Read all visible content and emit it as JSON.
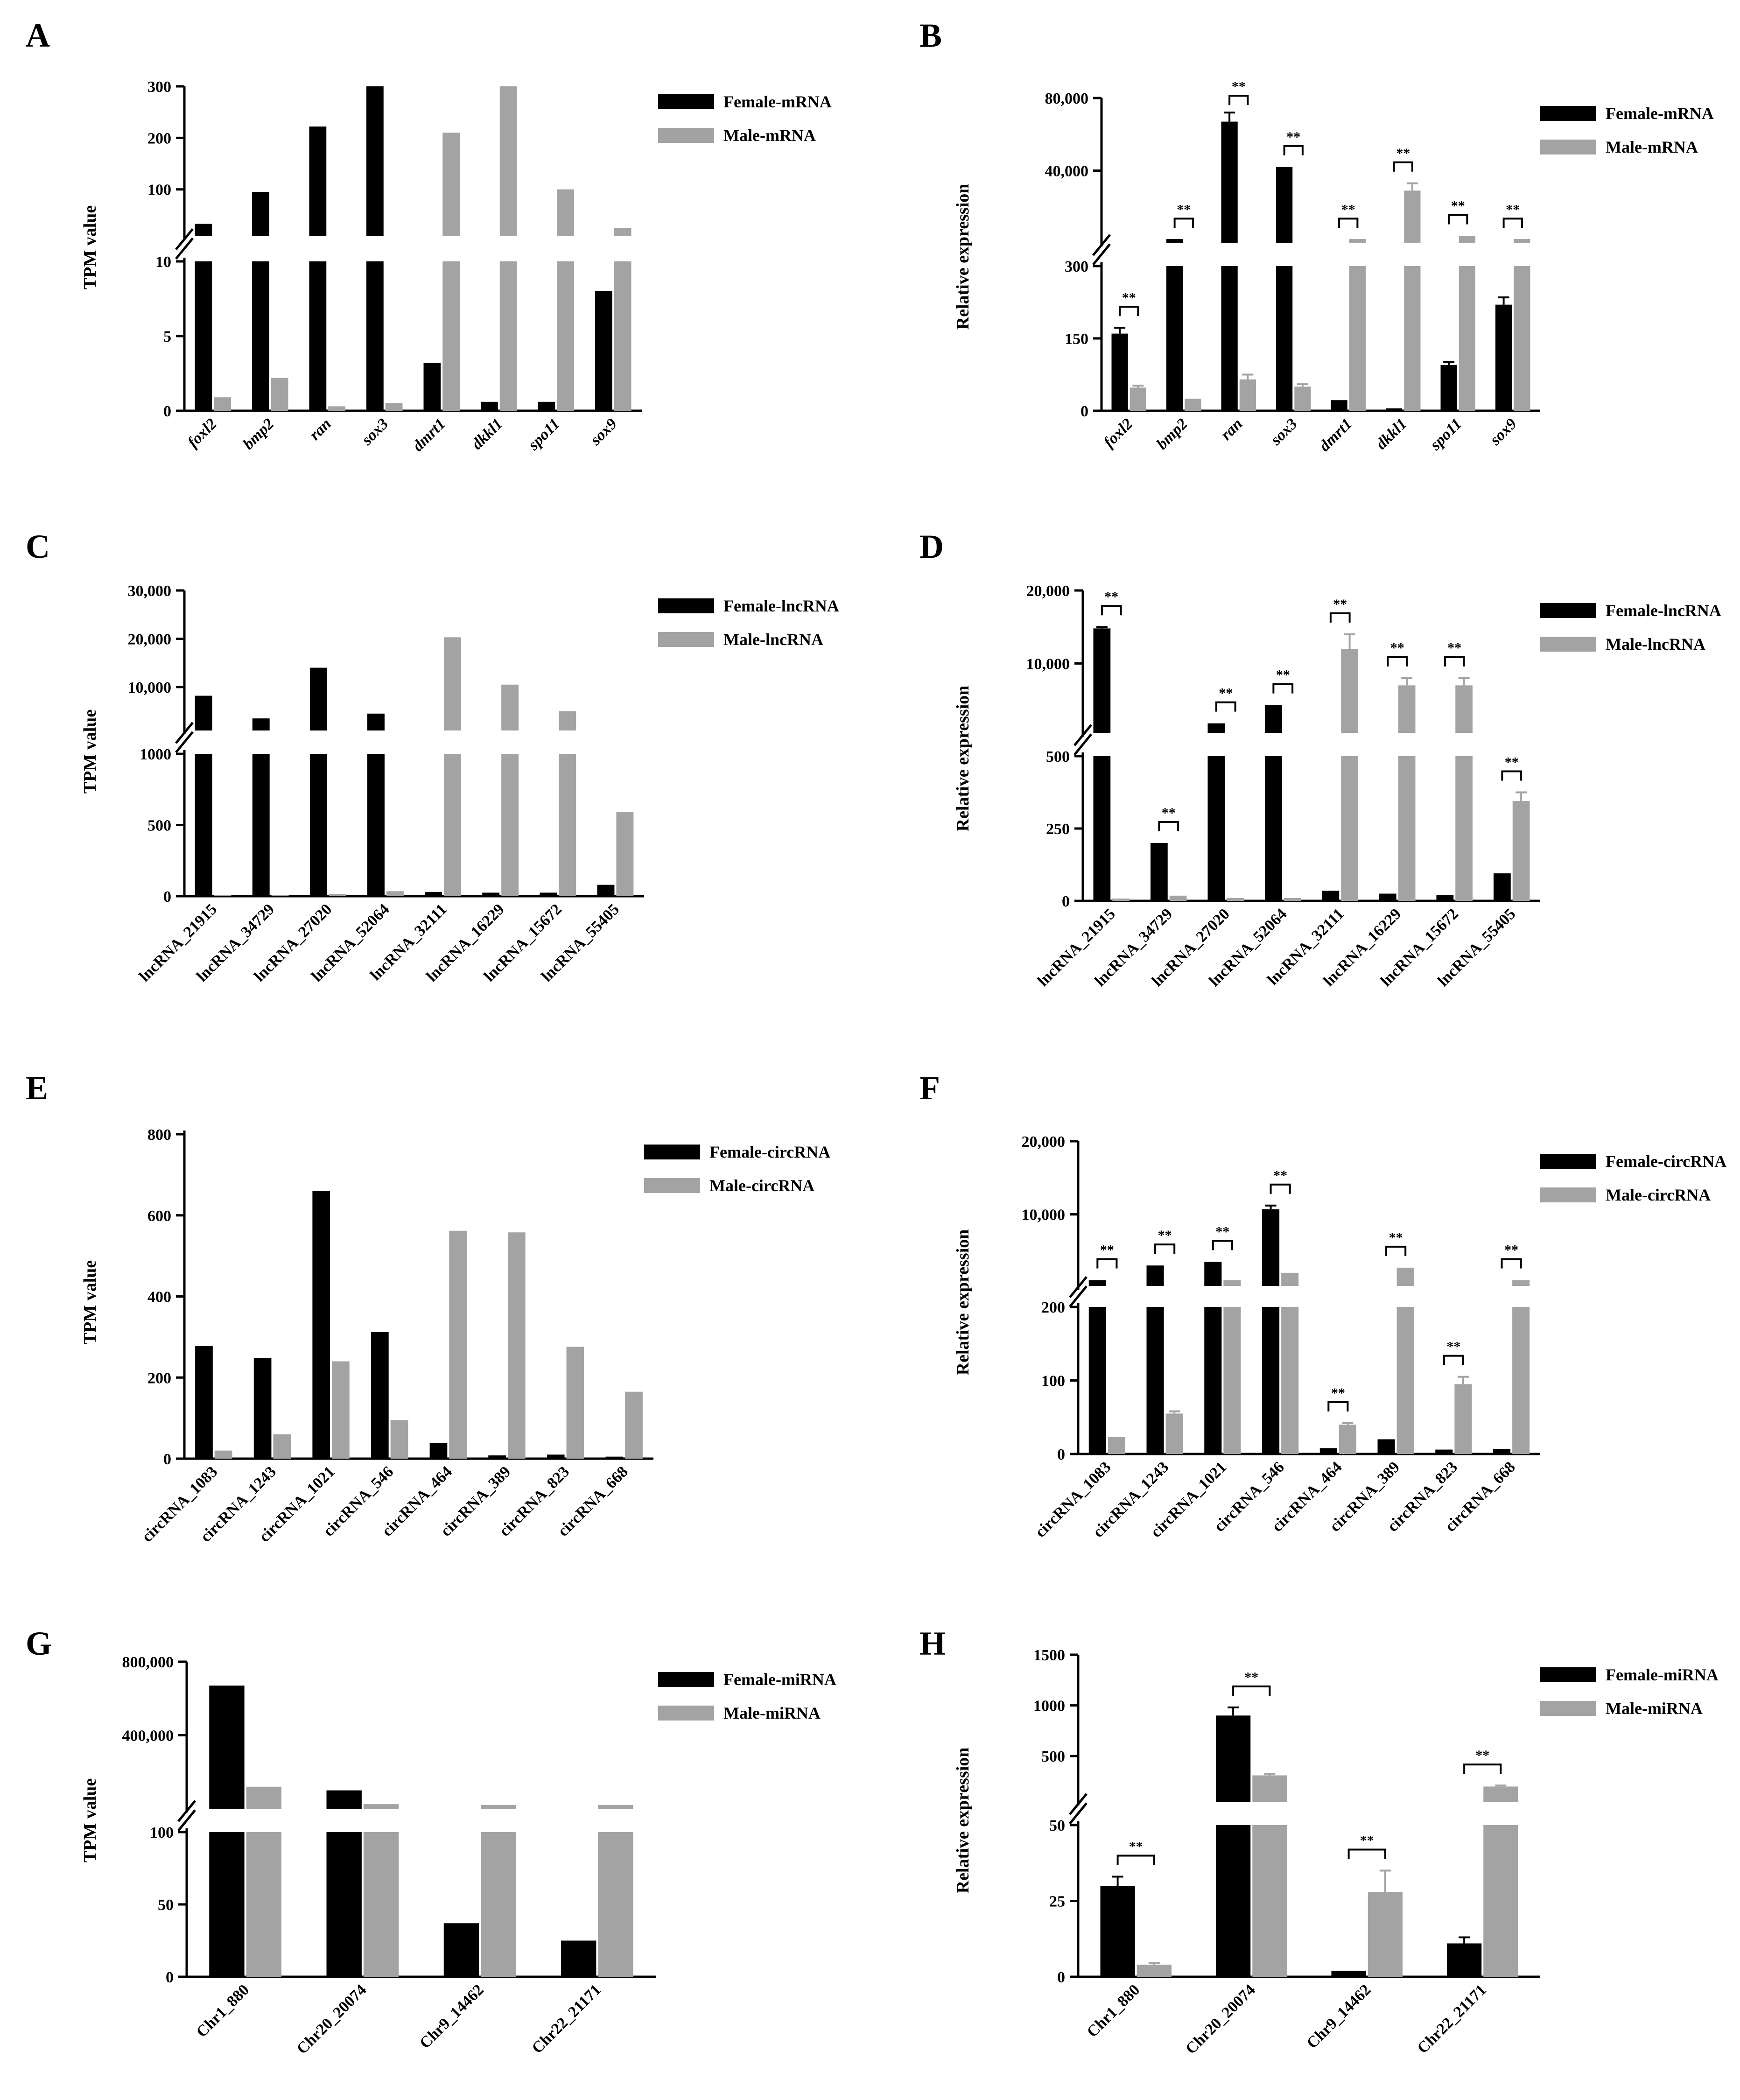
{
  "colors": {
    "female": "#000000",
    "male": "#a3a3a3",
    "axis": "#000000",
    "background": "#ffffff"
  },
  "chart_data": [
    {
      "panel": "A",
      "type": "bar",
      "broken_axis": true,
      "ylabel": "TPM value",
      "italic_categories": true,
      "categories": [
        "foxl2",
        "bmp2",
        "ran",
        "sox3",
        "dmrt1",
        "dkkl1",
        "spo11",
        "sox9"
      ],
      "series": [
        {
          "name": "Female-mRNA",
          "values": [
            33,
            95,
            222,
            300,
            3.2,
            0.6,
            0.6,
            8
          ]
        },
        {
          "name": "Male-mRNA",
          "values": [
            0.9,
            2.2,
            0.3,
            0.5,
            210,
            300,
            100,
            25
          ]
        }
      ],
      "lower": {
        "range": [
          0,
          10
        ],
        "ticks": [
          0,
          5,
          10
        ],
        "tick_labels": [
          "0",
          "5",
          "10"
        ]
      },
      "upper": {
        "range": [
          10,
          300
        ],
        "ticks": [
          100,
          200,
          300
        ],
        "tick_labels": [
          "100",
          "200",
          "300"
        ]
      }
    },
    {
      "panel": "B",
      "type": "bar",
      "broken_axis": true,
      "ylabel": "Relative expression",
      "italic_categories": true,
      "categories": [
        "foxl2",
        "bmp2",
        "ran",
        "sox3",
        "dmrt1",
        "dkkl1",
        "spo11",
        "sox9"
      ],
      "series": [
        {
          "name": "Female-mRNA",
          "values": [
            160,
            2000,
            67000,
            42000,
            22,
            5,
            95,
            220
          ],
          "errors": [
            12,
            0,
            5000,
            0,
            0,
            0,
            6,
            15
          ]
        },
        {
          "name": "Male-mRNA",
          "values": [
            48,
            25,
            65,
            50,
            2000,
            29000,
            4000,
            2000
          ],
          "errors": [
            4,
            0,
            10,
            5,
            0,
            4000,
            0,
            0
          ]
        }
      ],
      "significance": [
        "**",
        "**",
        "**",
        "**",
        "**",
        "**",
        "**",
        "**"
      ],
      "lower": {
        "range": [
          0,
          300
        ],
        "ticks": [
          0,
          150,
          300
        ],
        "tick_labels": [
          "0",
          "150",
          "300"
        ]
      },
      "upper": {
        "range": [
          300,
          80000
        ],
        "ticks": [
          40000,
          80000
        ],
        "tick_labels": [
          "40,000",
          "80,000"
        ]
      }
    },
    {
      "panel": "C",
      "type": "bar",
      "broken_axis": true,
      "ylabel": "TPM value",
      "italic_categories": false,
      "categories": [
        "lncRNA_21915",
        "lncRNA_34729",
        "lncRNA_27020",
        "lncRNA_52064",
        "lncRNA_32111",
        "lncRNA_16229",
        "lncRNA_15672",
        "lncRNA_55405"
      ],
      "series": [
        {
          "name": "Female-lncRNA",
          "values": [
            8200,
            3500,
            14000,
            4500,
            30,
            25,
            25,
            80
          ]
        },
        {
          "name": "Male-lncRNA",
          "values": [
            10,
            10,
            15,
            35,
            20300,
            10500,
            5000,
            590
          ]
        }
      ],
      "lower": {
        "range": [
          0,
          1000
        ],
        "ticks": [
          0,
          500,
          1000
        ],
        "tick_labels": [
          "0",
          "500",
          "1000"
        ]
      },
      "upper": {
        "range": [
          1000,
          30000
        ],
        "ticks": [
          10000,
          20000,
          30000
        ],
        "tick_labels": [
          "10,000",
          "20,000",
          "30,000"
        ]
      }
    },
    {
      "panel": "D",
      "type": "bar",
      "broken_axis": true,
      "ylabel": "Relative expression",
      "italic_categories": false,
      "categories": [
        "lncRNA_21915",
        "lncRNA_34729",
        "lncRNA_27020",
        "lncRNA_52064",
        "lncRNA_32111",
        "lncRNA_16229",
        "lncRNA_15672",
        "lncRNA_55405"
      ],
      "series": [
        {
          "name": "Female-lncRNA",
          "values": [
            14800,
            200,
            1800,
            4300,
            35,
            25,
            20,
            95
          ],
          "errors": [
            200,
            0,
            0,
            0,
            0,
            0,
            0,
            0
          ]
        },
        {
          "name": "Male-lncRNA",
          "values": [
            8,
            18,
            10,
            10,
            12000,
            7000,
            7000,
            345
          ],
          "errors": [
            0,
            0,
            0,
            0,
            2000,
            1000,
            1000,
            30
          ]
        }
      ],
      "significance": [
        "**",
        "**",
        "**",
        "**",
        "**",
        "**",
        "**",
        "**"
      ],
      "lower": {
        "range": [
          0,
          500
        ],
        "ticks": [
          0,
          250,
          500
        ],
        "tick_labels": [
          "0",
          "250",
          "500"
        ]
      },
      "upper": {
        "range": [
          500,
          20000
        ],
        "ticks": [
          10000,
          20000
        ],
        "tick_labels": [
          "10,000",
          "20,000"
        ]
      }
    },
    {
      "panel": "E",
      "type": "bar",
      "broken_axis": false,
      "ylabel": "TPM value",
      "italic_categories": false,
      "categories": [
        "circRNA_1083",
        "circRNA_1243",
        "circRNA_1021",
        "circRNA_546",
        "circRNA_464",
        "circRNA_389",
        "circRNA_823",
        "circRNA_668"
      ],
      "series": [
        {
          "name": "Female-circRNA",
          "values": [
            278,
            248,
            660,
            312,
            38,
            8,
            10,
            5
          ]
        },
        {
          "name": "Male-circRNA",
          "values": [
            20,
            60,
            240,
            95,
            562,
            558,
            276,
            165
          ]
        }
      ],
      "lower": {
        "range": [
          0,
          800
        ],
        "ticks": [
          0,
          200,
          400,
          600,
          800
        ],
        "tick_labels": [
          "0",
          "200",
          "400",
          "600",
          "800"
        ]
      }
    },
    {
      "panel": "F",
      "type": "bar",
      "broken_axis": true,
      "ylabel": "Relative expression",
      "italic_categories": false,
      "categories": [
        "circRNA_1083",
        "circRNA_1243",
        "circRNA_1021",
        "circRNA_546",
        "circRNA_464",
        "circRNA_389",
        "circRNA_823",
        "circRNA_668"
      ],
      "series": [
        {
          "name": "Female-circRNA",
          "values": [
            1000,
            3000,
            3500,
            10700,
            8,
            20,
            6,
            7
          ],
          "errors": [
            0,
            0,
            0,
            500,
            0,
            0,
            0,
            0
          ]
        },
        {
          "name": "Male-circRNA",
          "values": [
            23,
            55,
            1000,
            2000,
            40,
            2700,
            95,
            1000
          ],
          "errors": [
            0,
            3,
            0,
            0,
            2,
            0,
            10,
            0
          ]
        }
      ],
      "significance": [
        "**",
        "**",
        "**",
        "**",
        "**",
        "**",
        "**",
        "**"
      ],
      "lower": {
        "range": [
          0,
          200
        ],
        "ticks": [
          0,
          100,
          200
        ],
        "tick_labels": [
          "0",
          "100",
          "200"
        ]
      },
      "upper": {
        "range": [
          200,
          20000
        ],
        "ticks": [
          10000,
          20000
        ],
        "tick_labels": [
          "10,000",
          "20,000"
        ]
      }
    },
    {
      "panel": "G",
      "type": "bar",
      "broken_axis": true,
      "ylabel": "TPM value",
      "italic_categories": false,
      "categories": [
        "Chr1_880",
        "Chr20_20074",
        "Chr9_14462",
        "Chr22_21171"
      ],
      "series": [
        {
          "name": "Female-miRNA",
          "values": [
            670000,
            100000,
            37,
            25
          ]
        },
        {
          "name": "Male-miRNA",
          "values": [
            120000,
            25000,
            5000,
            5000
          ]
        }
      ],
      "lower": {
        "range": [
          0,
          100
        ],
        "ticks": [
          0,
          50,
          100
        ],
        "tick_labels": [
          "0",
          "50",
          "100"
        ]
      },
      "upper": {
        "range": [
          100,
          800000
        ],
        "ticks": [
          400000,
          800000
        ],
        "tick_labels": [
          "400,000",
          "800,000"
        ]
      }
    },
    {
      "panel": "H",
      "type": "bar",
      "broken_axis": true,
      "ylabel": "Relative expression",
      "italic_categories": false,
      "categories": [
        "Chr1_880",
        "Chr20_20074",
        "Chr9_14462",
        "Chr22_21171"
      ],
      "series": [
        {
          "name": "Female-miRNA",
          "values": [
            30,
            900,
            2,
            11
          ],
          "errors": [
            3,
            80,
            0,
            2
          ]
        },
        {
          "name": "Male-miRNA",
          "values": [
            4,
            310,
            28,
            200
          ],
          "errors": [
            0.5,
            15,
            7,
            10
          ]
        }
      ],
      "significance": [
        "**",
        "**",
        "**",
        "**"
      ],
      "lower": {
        "range": [
          0,
          50
        ],
        "ticks": [
          0,
          25,
          50
        ],
        "tick_labels": [
          "0",
          "25",
          "50"
        ]
      },
      "upper": {
        "range": [
          50,
          1500
        ],
        "ticks": [
          500,
          1000,
          1500
        ],
        "tick_labels": [
          "500",
          "1000",
          "1500"
        ]
      }
    }
  ]
}
